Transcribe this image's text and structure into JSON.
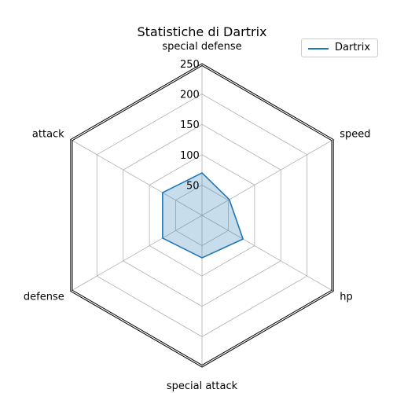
{
  "chart_data": {
    "type": "radar",
    "title": "Statistiche di Dartrix",
    "axes": [
      "speed",
      "special defense",
      "attack",
      "defense",
      "special attack",
      "hp"
    ],
    "rlim": [
      0,
      250
    ],
    "r_ticks": [
      "50",
      "100",
      "150",
      "200",
      "250"
    ],
    "series": [
      {
        "name": "Dartrix",
        "values": [
          52,
          70,
          75,
          75,
          70,
          78
        ]
      }
    ],
    "grid": true,
    "legend_position": "top-right",
    "colors": {
      "line": "#1f77b4",
      "fill": "#1f77b4",
      "grid": "#b0b0b0",
      "frame": "#000000"
    }
  }
}
